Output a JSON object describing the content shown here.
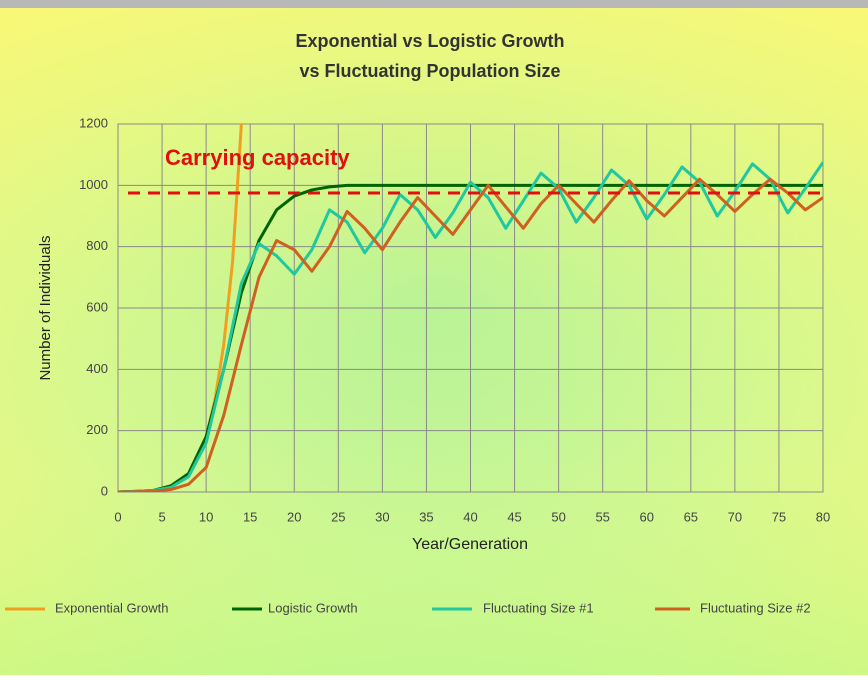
{
  "chart_data": {
    "type": "line",
    "title": "Exponential vs Logistic Growth",
    "subtitle": "vs Fluctuating Population Size",
    "x_label": "Year/Generation",
    "y_label": "Number of Individuals",
    "xlim": [
      0,
      80
    ],
    "xticks": [
      0,
      5,
      10,
      15,
      20,
      25,
      30,
      35,
      40,
      45,
      50,
      55,
      60,
      65,
      70,
      75,
      80
    ],
    "ylim": [
      0,
      1200
    ],
    "yticks": [
      0,
      200,
      400,
      600,
      800,
      1000,
      1200
    ],
    "grid": true,
    "legend": "bottom",
    "annotations": [
      {
        "text": "Carrying capacity",
        "y": 975,
        "color": "#e01010"
      }
    ],
    "series": [
      {
        "name": "Exponential Growth",
        "color": "#f0a020",
        "x": [
          0,
          2,
          4,
          6,
          8,
          10,
          11,
          12,
          13,
          14
        ],
        "values": [
          0,
          2,
          5,
          20,
          60,
          180,
          300,
          480,
          750,
          1200
        ]
      },
      {
        "name": "Logistic Growth",
        "color": "#006400",
        "x": [
          0,
          2,
          4,
          6,
          8,
          10,
          12,
          14,
          16,
          18,
          20,
          22,
          24,
          26,
          30,
          40,
          50,
          60,
          70,
          80
        ],
        "values": [
          0,
          2,
          5,
          20,
          60,
          180,
          400,
          650,
          820,
          920,
          965,
          985,
          995,
          1000,
          1000,
          1000,
          1000,
          1000,
          1000,
          1000
        ]
      },
      {
        "name": "Fluctuating Size #1",
        "color": "#20c8a0",
        "x": [
          0,
          2,
          4,
          6,
          8,
          10,
          12,
          14,
          16,
          18,
          20,
          22,
          24,
          26,
          28,
          30,
          32,
          34,
          36,
          38,
          40,
          42,
          44,
          46,
          48,
          50,
          52,
          54,
          56,
          58,
          60,
          62,
          64,
          66,
          68,
          70,
          72,
          74,
          76,
          78,
          80
        ],
        "values": [
          0,
          2,
          5,
          15,
          50,
          160,
          400,
          680,
          810,
          770,
          710,
          790,
          920,
          880,
          780,
          860,
          970,
          920,
          830,
          910,
          1010,
          960,
          860,
          950,
          1040,
          990,
          880,
          960,
          1050,
          1000,
          890,
          970,
          1060,
          1010,
          900,
          980,
          1070,
          1020,
          910,
          990,
          1075
        ]
      },
      {
        "name": "Fluctuating Size #2",
        "color": "#d06020",
        "x": [
          0,
          2,
          4,
          6,
          8,
          10,
          12,
          14,
          16,
          18,
          20,
          22,
          24,
          26,
          28,
          30,
          32,
          34,
          36,
          38,
          40,
          42,
          44,
          46,
          48,
          50,
          52,
          54,
          56,
          58,
          60,
          62,
          64,
          66,
          68,
          70,
          72,
          74,
          76,
          78,
          80
        ],
        "values": [
          0,
          1,
          3,
          8,
          25,
          80,
          250,
          480,
          700,
          820,
          790,
          720,
          800,
          915,
          860,
          790,
          880,
          960,
          900,
          840,
          920,
          1000,
          930,
          860,
          940,
          1000,
          940,
          880,
          950,
          1015,
          950,
          900,
          960,
          1020,
          970,
          915,
          970,
          1020,
          975,
          920,
          960
        ]
      }
    ]
  }
}
